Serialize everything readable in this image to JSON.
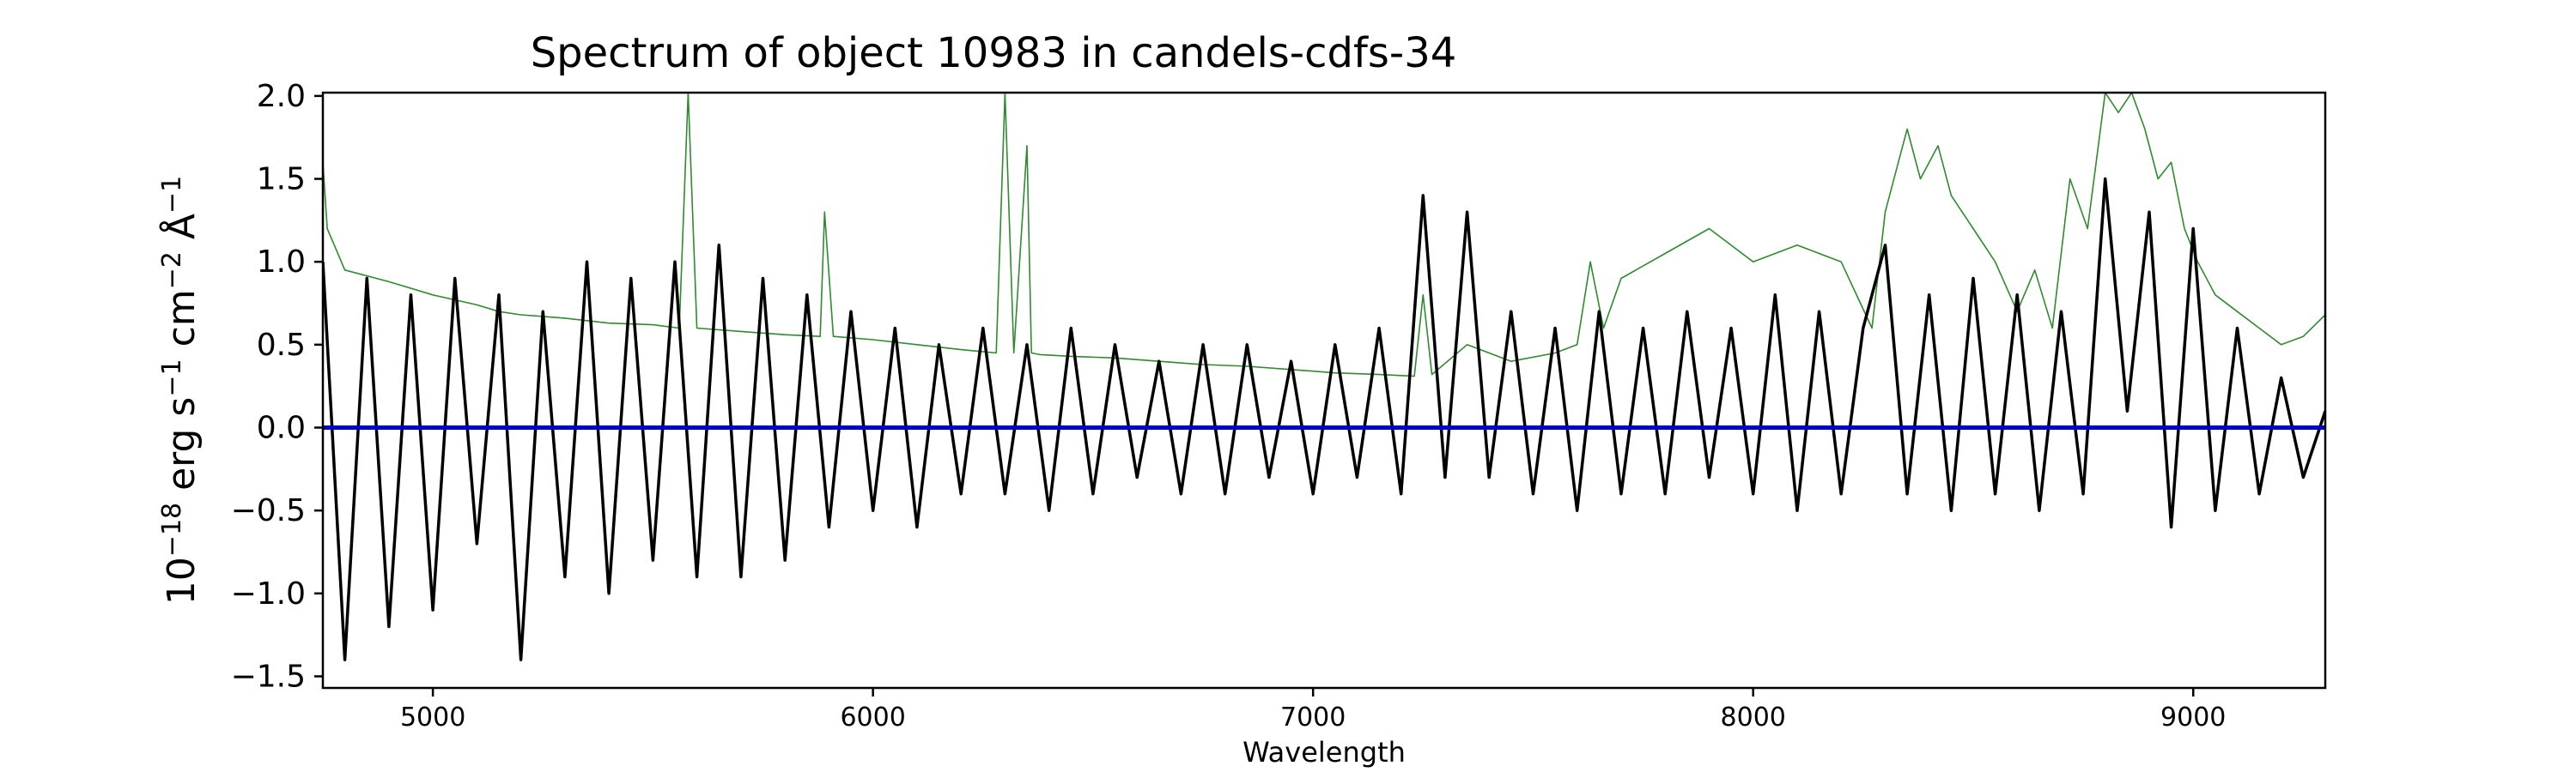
{
  "chart_data": {
    "type": "line",
    "title": "Spectrum of object 10983 in candels-cdfs-34",
    "xlabel": "Wavelength",
    "ylabel": {
      "prefix": "10",
      "prefix_exp": "−18",
      "unit1": " erg s",
      "unit1_exp": "−1",
      "unit2": " cm",
      "unit2_exp": "−2",
      "unit3": " Å",
      "unit3_exp": "−1"
    },
    "xlim": [
      4750,
      9300
    ],
    "ylim": [
      -1.57,
      2.02
    ],
    "x_ticks": [
      5000,
      6000,
      7000,
      8000,
      9000
    ],
    "x_tick_labels": [
      "5000",
      "6000",
      "7000",
      "8000",
      "9000"
    ],
    "y_ticks": [
      -1.5,
      -1.0,
      -0.5,
      0.0,
      0.5,
      1.0,
      1.5,
      2.0
    ],
    "y_tick_labels": [
      "−1.5",
      "−1.0",
      "−0.5",
      "0.0",
      "0.5",
      "1.0",
      "1.5",
      "2.0"
    ],
    "grid": false,
    "series": [
      {
        "color": "#000000",
        "x": [
          4750,
          4800,
          4850,
          4900,
          4950,
          5000,
          5050,
          5100,
          5150,
          5200,
          5250,
          5300,
          5350,
          5400,
          5450,
          5500,
          5550,
          5600,
          5650,
          5700,
          5750,
          5800,
          5850,
          5900,
          5950,
          6000,
          6050,
          6100,
          6150,
          6200,
          6250,
          6300,
          6350,
          6400,
          6450,
          6500,
          6550,
          6600,
          6650,
          6700,
          6750,
          6800,
          6850,
          6900,
          6950,
          7000,
          7050,
          7100,
          7150,
          7200,
          7250,
          7300,
          7350,
          7400,
          7450,
          7500,
          7550,
          7600,
          7650,
          7700,
          7750,
          7800,
          7850,
          7900,
          7950,
          8000,
          8050,
          8100,
          8150,
          8200,
          8250,
          8300,
          8350,
          8400,
          8450,
          8500,
          8550,
          8600,
          8650,
          8700,
          8750,
          8800,
          8850,
          8900,
          8950,
          9000,
          9050,
          9100,
          9150,
          9200,
          9250,
          9300
        ],
        "values": [
          1.0,
          -1.4,
          0.9,
          -1.2,
          0.8,
          -1.1,
          0.9,
          -0.7,
          0.8,
          -1.4,
          0.7,
          -0.9,
          1.0,
          -1.0,
          0.9,
          -0.8,
          1.0,
          -0.9,
          1.1,
          -0.9,
          0.9,
          -0.8,
          0.8,
          -0.6,
          0.7,
          -0.5,
          0.6,
          -0.6,
          0.5,
          -0.4,
          0.6,
          -0.4,
          0.5,
          -0.5,
          0.6,
          -0.4,
          0.5,
          -0.3,
          0.4,
          -0.4,
          0.5,
          -0.4,
          0.5,
          -0.3,
          0.4,
          -0.4,
          0.5,
          -0.3,
          0.6,
          -0.4,
          1.4,
          -0.3,
          1.3,
          -0.3,
          0.7,
          -0.4,
          0.6,
          -0.5,
          0.7,
          -0.4,
          0.6,
          -0.4,
          0.7,
          -0.3,
          0.6,
          -0.4,
          0.8,
          -0.5,
          0.7,
          -0.4,
          0.6,
          1.1,
          -0.4,
          0.8,
          -0.5,
          0.9,
          -0.4,
          0.8,
          -0.5,
          0.7,
          -0.4,
          1.5,
          0.1,
          1.3,
          -0.6,
          1.2,
          -0.5,
          0.6,
          -0.4,
          0.3,
          -0.3,
          0.1
        ]
      },
      {
        "color": "#2e8b2e",
        "x": [
          4750,
          4760,
          4800,
          4900,
          5000,
          5100,
          5150,
          5200,
          5300,
          5400,
          5500,
          5560,
          5580,
          5600,
          5700,
          5800,
          5880,
          5890,
          5910,
          6000,
          6100,
          6200,
          6280,
          6300,
          6320,
          6350,
          6360,
          6380,
          6450,
          6550,
          6650,
          6750,
          6850,
          6950,
          7050,
          7150,
          7230,
          7250,
          7270,
          7350,
          7450,
          7550,
          7600,
          7630,
          7660,
          7700,
          7800,
          7900,
          8000,
          8100,
          8200,
          8270,
          8300,
          8330,
          8350,
          8380,
          8420,
          8450,
          8500,
          8550,
          8600,
          8640,
          8680,
          8720,
          8760,
          8800,
          8830,
          8860,
          8890,
          8920,
          8950,
          8980,
          9010,
          9050,
          9100,
          9150,
          9200,
          9250,
          9300
        ],
        "values": [
          1.6,
          1.2,
          0.95,
          0.88,
          0.8,
          0.74,
          0.7,
          0.68,
          0.66,
          0.63,
          0.62,
          0.6,
          2.02,
          0.6,
          0.58,
          0.56,
          0.55,
          1.3,
          0.55,
          0.53,
          0.5,
          0.47,
          0.45,
          2.02,
          0.45,
          1.7,
          0.45,
          0.44,
          0.43,
          0.42,
          0.4,
          0.38,
          0.37,
          0.35,
          0.33,
          0.32,
          0.31,
          0.8,
          0.32,
          0.5,
          0.4,
          0.45,
          0.5,
          1.0,
          0.6,
          0.9,
          1.05,
          1.2,
          1.0,
          1.1,
          1.0,
          0.6,
          1.3,
          1.6,
          1.8,
          1.5,
          1.7,
          1.4,
          1.2,
          1.0,
          0.7,
          0.95,
          0.6,
          1.5,
          1.2,
          2.02,
          1.9,
          2.02,
          1.8,
          1.5,
          1.6,
          1.2,
          1.0,
          0.8,
          0.7,
          0.6,
          0.5,
          0.55,
          0.68
        ]
      },
      {
        "color": "#0000cc",
        "x": [
          4750,
          9300
        ],
        "values": [
          0.0,
          0.0
        ]
      }
    ]
  }
}
